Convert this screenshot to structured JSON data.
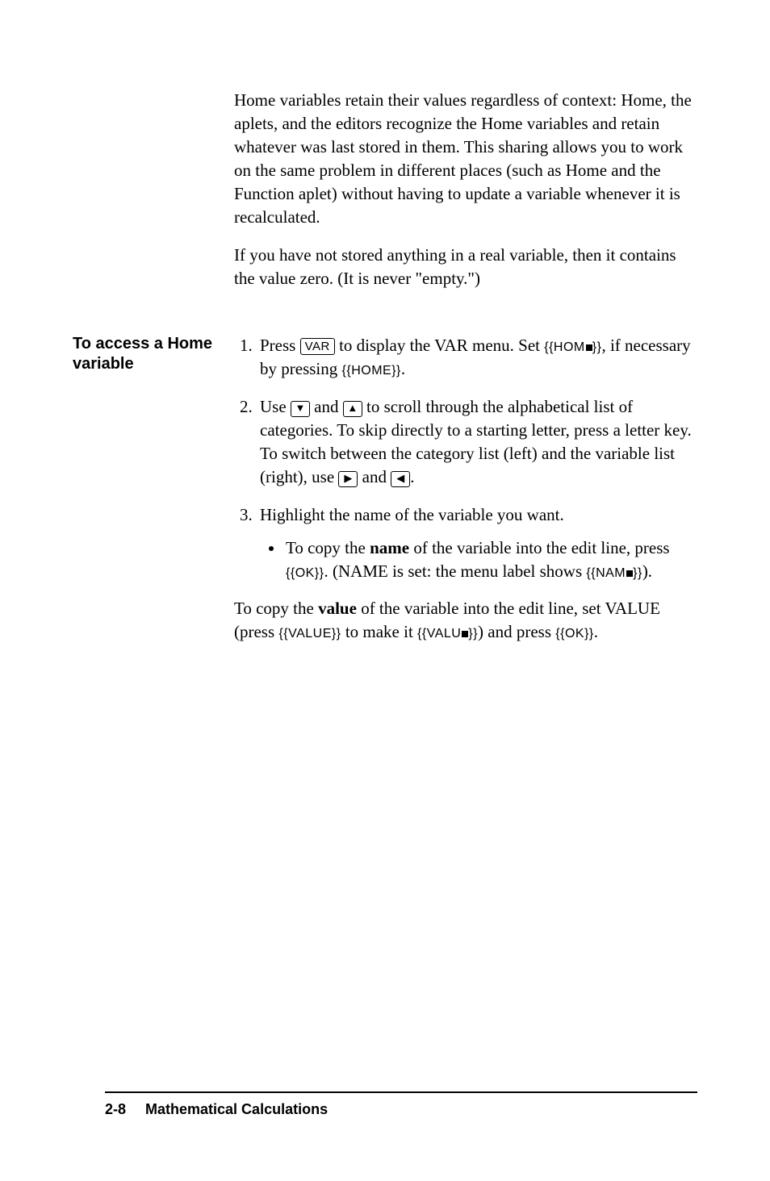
{
  "intro": {
    "para1": "Home variables retain their values regardless of context: Home, the aplets, and the editors recognize the Home variables and retain whatever was last stored in them. This sharing allows you to work on the same problem in different places (such as Home and the Function aplet) without having to update a variable whenever it is recalculated.",
    "para2": "If you have not stored anything in a real variable, then it contains the value zero. (It is never \"empty.\")"
  },
  "section": {
    "heading": "To access a Home variable",
    "steps": {
      "s1_a": "Press ",
      "s1_key": "VAR",
      "s1_b": " to display the VAR menu. Set ",
      "s1_soft1": "{{HOM",
      "s1_soft1_end": "}}",
      "s1_c": ", if necessary by pressing ",
      "s1_soft2": "{{HOME}}",
      "s1_d": ".",
      "s2_a": "Use ",
      "s2_b": " and ",
      "s2_c": " to scroll through the alphabetical list of categories. To skip directly to a starting letter, press a letter key. To switch between the category list (left) and the variable list (right), use  ",
      "s2_d": " and ",
      "s2_e": ".",
      "s3": "Highlight the name of the variable you want.",
      "bullet_a": "To copy the ",
      "bullet_name": "name",
      "bullet_b": " of the variable into the edit line, press ",
      "bullet_ok": "{{OK}}",
      "bullet_c": ". (NAME is set: the menu label shows ",
      "bullet_nam": "{{NAM",
      "bullet_nam_end": "}}",
      "bullet_d": ").",
      "final_a": "To copy the ",
      "final_value": "value",
      "final_b": " of the variable into the edit line, set VALUE (press ",
      "final_soft1": "{{VALUE}}",
      "final_c": " to make it ",
      "final_soft2": "{{VALU",
      "final_soft2_end": "}}",
      "final_d": ") and press ",
      "final_ok": "{{OK}}",
      "final_e": "."
    }
  },
  "footer": {
    "page": "2-8",
    "chapter": "Mathematical Calculations"
  },
  "style": {
    "body_font_size_pt": 16,
    "heading_font_size_pt": 15,
    "footer_font_size_pt": 13,
    "text_color": "#000000",
    "background_color": "#ffffff",
    "rule_color": "#000000"
  }
}
